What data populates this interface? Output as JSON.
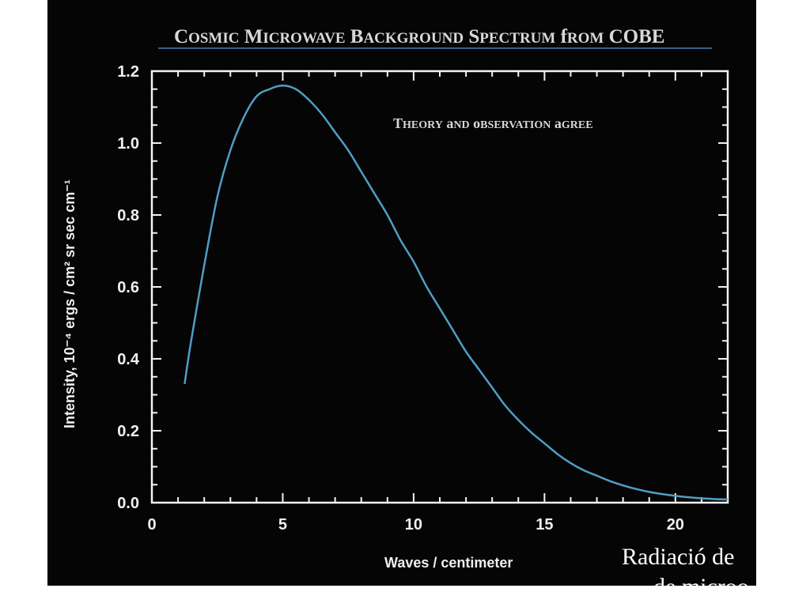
{
  "chart_data": {
    "type": "line",
    "title": "Cosmic Microwave Background Spectrum from COBE",
    "annotation": "Theory and observation agree",
    "xlabel": "Waves / centimeter",
    "ylabel": "Intensity, 10⁻⁴ ergs / cm² sr sec cm⁻¹",
    "xlim": [
      0,
      22
    ],
    "ylim": [
      0,
      1.2
    ],
    "x_ticks": [
      "0",
      "5",
      "10",
      "15",
      "20"
    ],
    "y_ticks": [
      "0.0",
      "0.2",
      "0.4",
      "0.6",
      "0.8",
      "1.0",
      "1.2"
    ],
    "grid": false,
    "series": [
      {
        "color": "#4f9ec4",
        "x": [
          1.25,
          1.5,
          2,
          2.5,
          3,
          3.5,
          4,
          4.5,
          5,
          5.5,
          6,
          6.5,
          7,
          7.5,
          8,
          8.5,
          9,
          9.5,
          10,
          10.5,
          11,
          11.5,
          12,
          12.5,
          13,
          13.5,
          14,
          14.5,
          15,
          15.5,
          16,
          16.5,
          17,
          17.5,
          18,
          18.5,
          19,
          19.5,
          20,
          20.5,
          21,
          21.5,
          22
        ],
        "y": [
          0.33,
          0.45,
          0.66,
          0.85,
          0.98,
          1.07,
          1.13,
          1.15,
          1.16,
          1.15,
          1.12,
          1.08,
          1.03,
          0.98,
          0.92,
          0.86,
          0.8,
          0.73,
          0.67,
          0.6,
          0.54,
          0.48,
          0.42,
          0.37,
          0.32,
          0.27,
          0.23,
          0.195,
          0.165,
          0.135,
          0.11,
          0.09,
          0.075,
          0.06,
          0.048,
          0.038,
          0.03,
          0.024,
          0.019,
          0.015,
          0.012,
          0.01,
          0.009
        ]
      }
    ]
  },
  "caption": {
    "line1": "Radiació de",
    "line2": "de microo"
  }
}
